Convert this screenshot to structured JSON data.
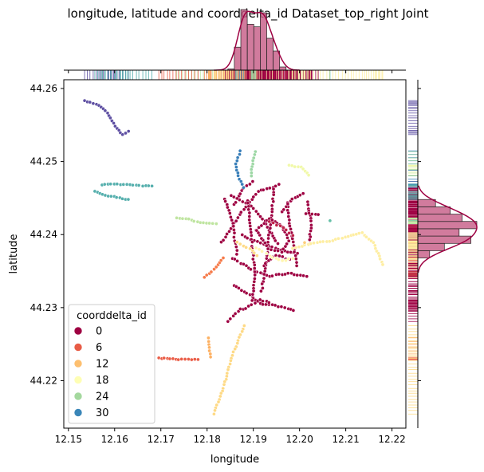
{
  "chart_data": {
    "type": "scatter",
    "title": "longitude, latitude and coorddelta_id Dataset_top_right Joint",
    "xlabel": "longitude",
    "ylabel": "latitude",
    "xlim": [
      12.149,
      12.223
    ],
    "ylim": [
      44.2135,
      44.2612
    ],
    "xticks": [
      12.15,
      12.16,
      12.17,
      12.18,
      12.19,
      12.2,
      12.21,
      12.22
    ],
    "xtick_labels": [
      "12.15",
      "12.16",
      "12.17",
      "12.18",
      "12.19",
      "12.20",
      "12.21",
      "12.22"
    ],
    "yticks": [
      44.22,
      44.23,
      44.24,
      44.25,
      44.26
    ],
    "ytick_labels": [
      "44.22",
      "44.23",
      "44.24",
      "44.25",
      "44.26"
    ],
    "grid": false,
    "legend": {
      "title": "coorddelta_id",
      "placement": "lower-left",
      "entries": [
        {
          "label": "0",
          "color": "#9e0142"
        },
        {
          "label": "6",
          "color": "#e85c46"
        },
        {
          "label": "12",
          "color": "#fdbf6f"
        },
        {
          "label": "18",
          "color": "#fefeb4"
        },
        {
          "label": "24",
          "color": "#a4d89e"
        },
        {
          "label": "30",
          "color": "#3a86b8"
        }
      ]
    },
    "colormap": [
      "#9e0142",
      "#d53e4f",
      "#f46d43",
      "#fdae61",
      "#fee08b",
      "#ffffbf",
      "#e6f598",
      "#abdda4",
      "#66c2a5",
      "#3288bd",
      "#5e4fa2"
    ],
    "hue_range": [
      0,
      36
    ],
    "tracks": [
      {
        "hue": 36,
        "points": [
          [
            12.1535,
            44.2583
          ],
          [
            12.156,
            44.2579
          ],
          [
            12.1585,
            44.2567
          ],
          [
            12.1605,
            44.2545
          ],
          [
            12.1617,
            44.2537
          ],
          [
            12.163,
            44.2541
          ]
        ]
      },
      {
        "hue": 30,
        "points": [
          [
            12.1572,
            44.2468
          ],
          [
            12.1605,
            44.2469
          ],
          [
            12.164,
            44.2468
          ],
          [
            12.168,
            44.2466
          ]
        ]
      },
      {
        "hue": 30,
        "points": [
          [
            12.1558,
            44.2459
          ],
          [
            12.158,
            44.2454
          ],
          [
            12.1605,
            44.2451
          ],
          [
            12.163,
            44.2448
          ]
        ]
      },
      {
        "hue": 33,
        "points": [
          [
            12.1872,
            44.2514
          ],
          [
            12.1862,
            44.2497
          ],
          [
            12.1868,
            44.248
          ],
          [
            12.1878,
            44.2465
          ]
        ]
      },
      {
        "hue": 26,
        "points": [
          [
            12.1905,
            44.2514
          ],
          [
            12.1898,
            44.2497
          ],
          [
            12.1895,
            44.248
          ]
        ]
      },
      {
        "hue": 24,
        "points": [
          [
            12.1735,
            44.2423
          ],
          [
            12.176,
            44.2421
          ],
          [
            12.1785,
            44.2416
          ],
          [
            12.182,
            44.2415
          ]
        ]
      },
      {
        "hue": 20,
        "points": [
          [
            12.1978,
            44.2495
          ],
          [
            12.2003,
            44.2492
          ],
          [
            12.202,
            44.2482
          ]
        ]
      },
      {
        "hue": 8,
        "points": [
          [
            12.1795,
            44.2342
          ],
          [
            12.1815,
            44.2352
          ],
          [
            12.1835,
            44.2368
          ]
        ]
      },
      {
        "hue": 16,
        "points": [
          [
            12.1985,
            44.2381
          ],
          [
            12.2025,
            44.2388
          ],
          [
            12.2065,
            44.2391
          ],
          [
            12.2105,
            44.2398
          ],
          [
            12.2135,
            44.2402
          ],
          [
            12.216,
            44.2389
          ],
          [
            12.218,
            44.2359
          ]
        ]
      },
      {
        "hue": 6,
        "points": [
          [
            12.1695,
            44.2231
          ],
          [
            12.172,
            44.223
          ],
          [
            12.1745,
            44.2229
          ],
          [
            12.178,
            44.2229
          ]
        ]
      },
      {
        "hue": 14,
        "points": [
          [
            12.188,
            44.2275
          ],
          [
            12.1855,
            44.2235
          ],
          [
            12.1835,
            44.219
          ],
          [
            12.1815,
            44.2155
          ]
        ]
      },
      {
        "hue": 11,
        "points": [
          [
            12.1802,
            44.2258
          ],
          [
            12.1807,
            44.2232
          ]
        ]
      },
      {
        "hue": 29,
        "points": [
          [
            12.2066,
            44.2419
          ]
        ]
      },
      {
        "hue": 13,
        "points": [
          [
            12.2011,
            44.2389
          ]
        ]
      }
    ],
    "network_hue": 0,
    "network": [
      [
        [
          12.1832,
          44.2389
        ],
        [
          12.187,
          44.2427
        ],
        [
          12.191,
          44.2459
        ],
        [
          12.1955,
          44.2468
        ]
      ],
      [
        [
          12.1852,
          44.2454
        ],
        [
          12.1895,
          44.2439
        ],
        [
          12.1925,
          44.2418
        ],
        [
          12.1952,
          44.2387
        ]
      ],
      [
        [
          12.1875,
          44.2399
        ],
        [
          12.1915,
          44.2389
        ],
        [
          12.1955,
          44.2379
        ],
        [
          12.1995,
          44.2374
        ]
      ],
      [
        [
          12.1855,
          44.2368
        ],
        [
          12.1895,
          44.2352
        ],
        [
          12.1935,
          44.2343
        ],
        [
          12.1975,
          44.2347
        ],
        [
          12.2015,
          44.2343
        ]
      ],
      [
        [
          12.1858,
          44.2331
        ],
        [
          12.1892,
          44.2317
        ],
        [
          12.1915,
          44.2305
        ],
        [
          12.1935,
          44.2305
        ]
      ],
      [
        [
          12.1878,
          44.2297
        ],
        [
          12.1915,
          44.2311
        ],
        [
          12.1948,
          44.2303
        ],
        [
          12.1988,
          44.2297
        ]
      ],
      [
        [
          12.1888,
          44.2447
        ],
        [
          12.1895,
          44.2398
        ],
        [
          12.1903,
          44.2349
        ],
        [
          12.1898,
          44.2309
        ]
      ],
      [
        [
          12.1945,
          44.2463
        ],
        [
          12.1937,
          44.2413
        ],
        [
          12.1928,
          44.2367
        ],
        [
          12.1918,
          44.2323
        ]
      ],
      [
        [
          12.1973,
          44.2443
        ],
        [
          12.1983,
          44.2398
        ],
        [
          12.1995,
          44.2358
        ]
      ],
      [
        [
          12.2018,
          44.2445
        ],
        [
          12.2025,
          44.2418
        ],
        [
          12.2022,
          44.2388
        ]
      ],
      [
        [
          12.1838,
          44.2449
        ],
        [
          12.1855,
          44.2416
        ],
        [
          12.1865,
          44.2373
        ]
      ],
      [
        [
          12.1906,
          44.2406
        ],
        [
          12.1935,
          44.2422
        ],
        [
          12.1963,
          44.2411
        ],
        [
          12.1977,
          44.2392
        ],
        [
          12.1962,
          44.2376
        ],
        [
          12.1932,
          44.2381
        ],
        [
          12.1906,
          44.2406
        ]
      ],
      [
        [
          12.1922,
          44.2358
        ],
        [
          12.1948,
          44.2372
        ],
        [
          12.1978,
          44.2366
        ]
      ],
      [
        [
          12.1858,
          44.2441
        ],
        [
          12.1878,
          44.2464
        ],
        [
          12.1898,
          44.2472
        ]
      ],
      [
        [
          12.1962,
          44.2431
        ],
        [
          12.1985,
          44.2449
        ],
        [
          12.2008,
          44.2456
        ]
      ],
      [
        [
          12.1845,
          44.2281
        ],
        [
          12.1872,
          44.2298
        ]
      ],
      [
        [
          12.2015,
          44.2429
        ],
        [
          12.2041,
          44.2428
        ]
      ]
    ],
    "network_mixed": [
      {
        "hue": 17,
        "points": [
          [
            12.1905,
            44.2382
          ],
          [
            12.1935,
            44.2371
          ],
          [
            12.1962,
            44.2364
          ],
          [
            12.1985,
            44.2368
          ]
        ]
      },
      {
        "hue": 2,
        "points": [
          [
            12.1935,
            44.2418
          ],
          [
            12.1965,
            44.2409
          ],
          [
            12.1985,
            44.2399
          ]
        ]
      },
      {
        "hue": 14,
        "points": [
          [
            12.1865,
            44.2389
          ],
          [
            12.1892,
            44.2381
          ],
          [
            12.1908,
            44.2372
          ]
        ]
      }
    ],
    "marginal_x_hist": {
      "bin_edges": [
        12.1845,
        12.1859,
        12.1873,
        12.1887,
        12.1901,
        12.1915,
        12.1929,
        12.1943,
        12.1957,
        12.1971
      ],
      "counts": [
        2,
        36,
        95,
        72,
        68,
        90,
        50,
        30,
        5
      ]
    },
    "marginal_y_hist": {
      "bin_edges": [
        44.2368,
        44.2378,
        44.2388,
        44.2398,
        44.2408,
        44.2418,
        44.2428,
        44.2438,
        44.2448
      ],
      "counts": [
        20,
        45,
        90,
        70,
        100,
        75,
        55,
        30
      ]
    }
  }
}
